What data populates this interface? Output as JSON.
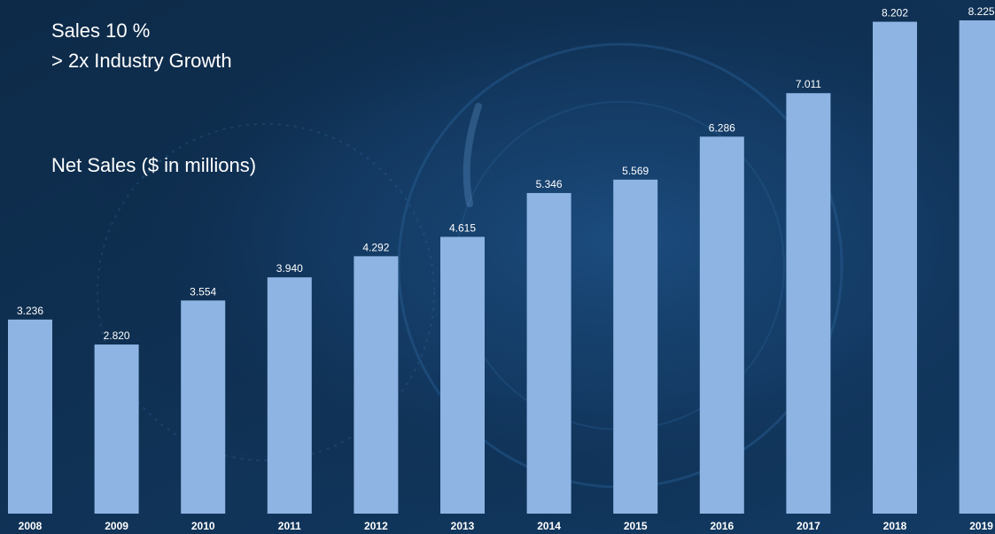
{
  "heading": {
    "line1": "Sales   10 %",
    "line2": "> 2x Industry Growth",
    "subtitle": "Net Sales ($ in millions)"
  },
  "colors": {
    "background": "#0f2d4e",
    "bar": "#8eb4e3",
    "text": "#ffffff"
  },
  "chart_data": {
    "type": "bar",
    "title": "Net Sales ($ in millions)",
    "categories": [
      "2008",
      "2009",
      "2010",
      "2011",
      "2012",
      "2013",
      "2014",
      "2015",
      "2016",
      "2017",
      "2018",
      "2019"
    ],
    "values": [
      3.236,
      2.82,
      3.554,
      3.94,
      4.292,
      4.615,
      5.346,
      5.569,
      6.286,
      7.011,
      8.202,
      8.225
    ],
    "value_labels": [
      "3.236",
      "2.820",
      "3.554",
      "3.940",
      "4.292",
      "4.615",
      "5.346",
      "5.569",
      "6.286",
      "7.011",
      "8.202",
      "8.225"
    ],
    "ylim": [
      0,
      8.225
    ],
    "grid": false,
    "legend": "none"
  }
}
